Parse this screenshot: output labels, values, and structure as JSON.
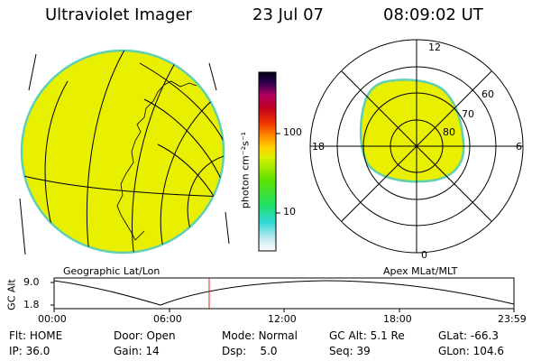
{
  "header": {
    "title": "Ultraviolet Imager",
    "date": "23 Jul 07",
    "time": "08:09:02 UT"
  },
  "colorbar": {
    "unit_label": "photon cm⁻²s⁻¹",
    "tick_100": "100",
    "tick_10": "10"
  },
  "left_panel": {
    "caption": "Geographic Lat/Lon",
    "fill_color": "#e8f000",
    "edge_color": "#5fd0b0"
  },
  "right_panel": {
    "caption": "Apex MLat/MLT",
    "mlt_top": "12",
    "mlt_left": "18",
    "mlt_right": "6",
    "mlt_bottom": "0",
    "lat_60": "60",
    "lat_70": "70",
    "lat_80": "80",
    "fill_color": "#e8f000",
    "edge_color": "#5fd0b0"
  },
  "altitude_plot": {
    "ylabel": "GC Alt",
    "ytick_top": "9.0",
    "ytick_bottom": "1.8",
    "xticks": [
      "00:00",
      "06:00",
      "12:00",
      "18:00",
      "23:59"
    ],
    "marker_color": "#e02020"
  },
  "status": {
    "flt_label": "Flt:",
    "flt_value": "HOME",
    "ip_label": "IP:",
    "ip_value": "36.0",
    "door_label": "Door:",
    "door_value": "Open",
    "gain_label": "Gain:",
    "gain_value": "14",
    "mode_label": "Mode:",
    "mode_value": "Normal",
    "dsp_label": "Dsp:",
    "dsp_value": "5.0",
    "gcalt_label": "GC Alt:",
    "gcalt_value": "5.1 Re",
    "seq_label": "Seq:",
    "seq_value": "39",
    "glat_label": "GLat:",
    "glat_value": "-66.3",
    "glon_label": "GLon:",
    "glon_value": "104.6"
  }
}
